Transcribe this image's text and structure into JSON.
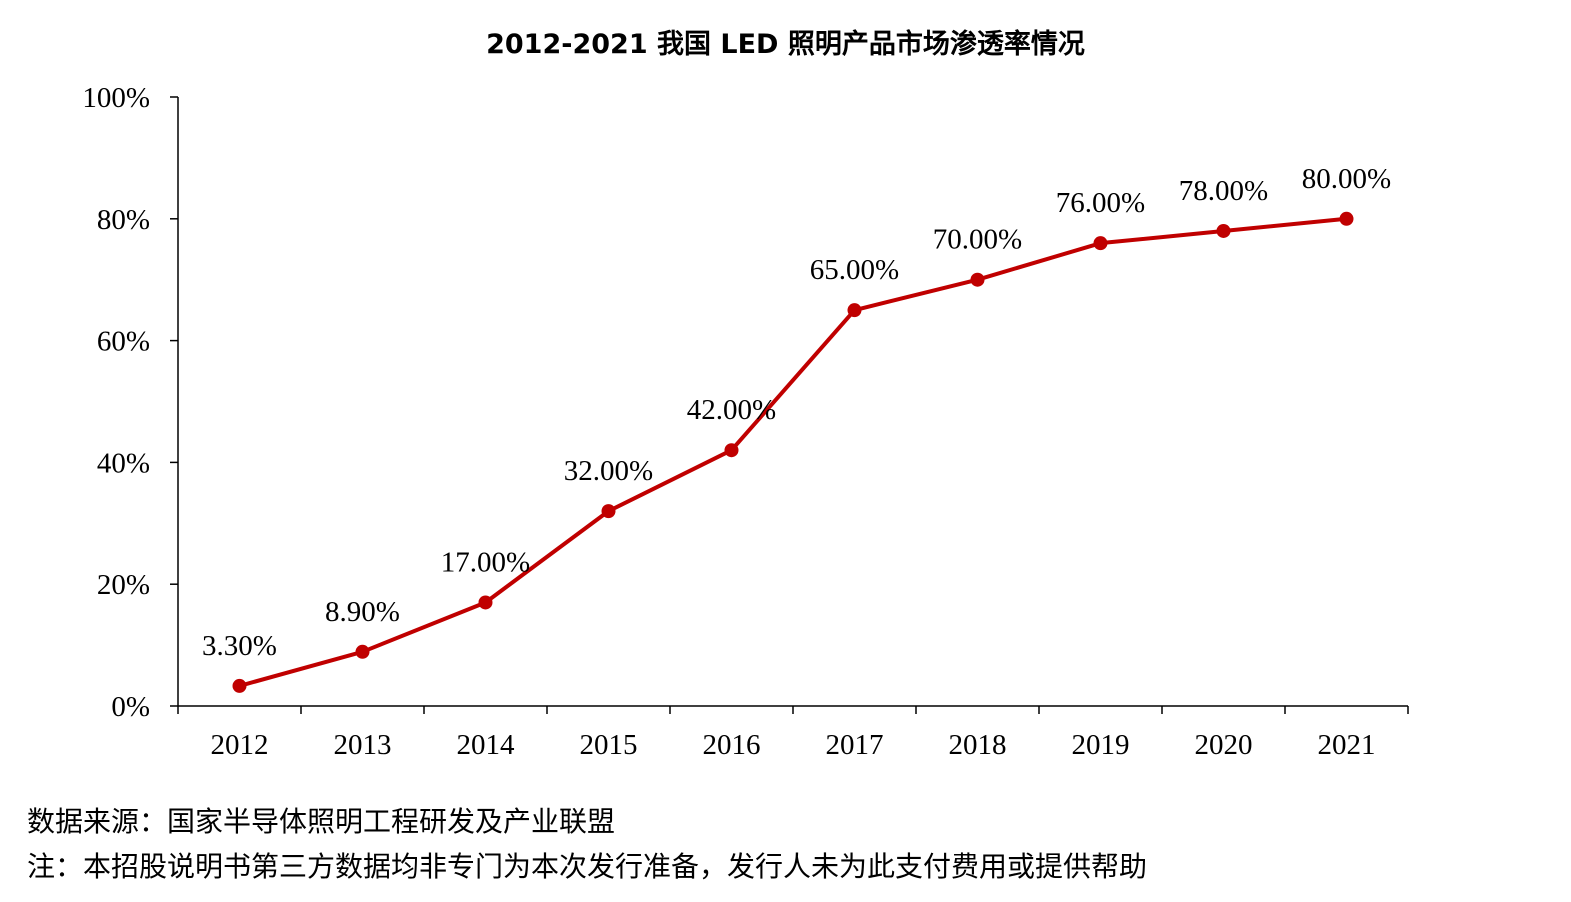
{
  "chart_data": {
    "type": "line",
    "title": "2012-2021 我国 LED 照明产品市场渗透率情况",
    "categories": [
      "2012",
      "2013",
      "2014",
      "2015",
      "2016",
      "2017",
      "2018",
      "2019",
      "2020",
      "2021"
    ],
    "series": [
      {
        "values": [
          3.3,
          8.9,
          17.0,
          32.0,
          42.0,
          65.0,
          70.0,
          76.0,
          78.0,
          80.0
        ],
        "labels": [
          "3.30%",
          "8.90%",
          "17.00%",
          "32.00%",
          "42.00%",
          "65.00%",
          "70.00%",
          "76.00%",
          "78.00%",
          "80.00%"
        ],
        "color": "#c00000"
      }
    ],
    "y_ticks": [
      "0%",
      "20%",
      "40%",
      "60%",
      "80%",
      "100%"
    ],
    "ylim": [
      0,
      100
    ],
    "xlabel": "",
    "ylabel": "",
    "grid": false,
    "legend": "none"
  },
  "footer": {
    "source": "数据来源：国家半导体照明工程研发及产业联盟",
    "note": "注：本招股说明书第三方数据均非专门为本次发行准备，发行人未为此支付费用或提供帮助"
  }
}
